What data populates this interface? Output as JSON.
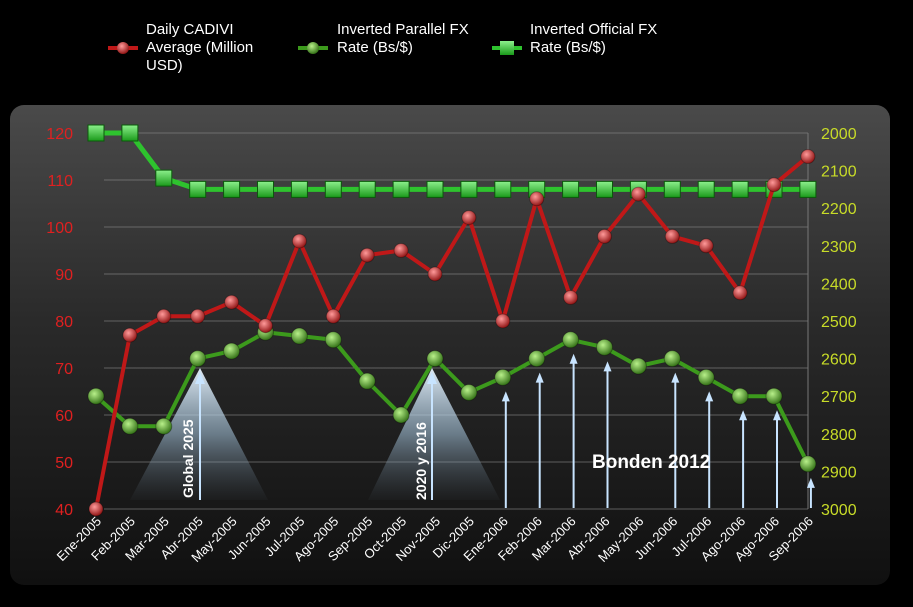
{
  "colors": {
    "cadivi": "#c01818",
    "parallel": "#3c9a1c",
    "official": "#2ec32e",
    "left_axis": "#e02020",
    "right_axis": "#c8dc28",
    "arrow": "#c8e4ff"
  },
  "legend": [
    {
      "label_lines": [
        "Daily CADIVI",
        "Average (Million",
        "USD)"
      ],
      "series": "cadivi"
    },
    {
      "label_lines": [
        "Inverted Parallel FX",
        "Rate (Bs/$)"
      ],
      "series": "parallel"
    },
    {
      "label_lines": [
        "Inverted Official FX",
        "Rate (Bs/$)"
      ],
      "series": "official"
    }
  ],
  "annotations": {
    "spotlight_1": "Global 2025",
    "spotlight_2": "2020 y 2016",
    "label": "Bonden 2012"
  },
  "chart_data": {
    "type": "line",
    "categories": [
      "Ene-2005",
      "Feb-2005",
      "Mar-2005",
      "Abr-2005",
      "May-2005",
      "Jun-2005",
      "Jul-2005",
      "Ago-2005",
      "Sep-2005",
      "Oct-2005",
      "Nov-2005",
      "Dic-2005",
      "Ene-2006",
      "Feb-2006",
      "Mar-2006",
      "Abr-2006",
      "May-2006",
      "Jun-2006",
      "Jul-2006",
      "Ago-2006",
      "Ago-2006",
      "Sep-2006"
    ],
    "y_left": {
      "min": 40,
      "max": 120,
      "ticks": [
        40,
        50,
        60,
        70,
        80,
        90,
        100,
        110,
        120
      ]
    },
    "y_right": {
      "min": 2000,
      "max": 3000,
      "inverted": true,
      "ticks": [
        2000,
        2100,
        2200,
        2300,
        2400,
        2500,
        2600,
        2700,
        2800,
        2900,
        3000
      ]
    },
    "series": [
      {
        "name": "Daily CADIVI Average (Million USD)",
        "axis": "left",
        "values": [
          40,
          77,
          81,
          81,
          84,
          79,
          97,
          81,
          94,
          95,
          90,
          102,
          80,
          106,
          85,
          98,
          107,
          98,
          96,
          86,
          109,
          115
        ]
      },
      {
        "name": "Inverted Parallel FX Rate (Bs/$)",
        "axis": "right",
        "values": [
          2700,
          2780,
          2780,
          2600,
          2580,
          2530,
          2540,
          2550,
          2660,
          2750,
          2600,
          2690,
          2650,
          2600,
          2550,
          2570,
          2620,
          2600,
          2650,
          2700,
          2700,
          2880
        ]
      },
      {
        "name": "Inverted Official FX Rate (Bs/$)",
        "axis": "right",
        "values": [
          2000,
          2000,
          2120,
          2150,
          2150,
          2150,
          2150,
          2150,
          2150,
          2150,
          2150,
          2150,
          2150,
          2150,
          2150,
          2150,
          2150,
          2150,
          2150,
          2150,
          2150,
          2150
        ]
      }
    ],
    "upward_arrows_at": [
      "Ene-2006",
      "Feb-2006",
      "Mar-2006",
      "Abr-2006",
      "Jun-2006",
      "Jul-2006",
      "Ago-2006",
      "Ago-2006",
      "Sep-2006"
    ],
    "grid": true,
    "legend_position": "top"
  }
}
